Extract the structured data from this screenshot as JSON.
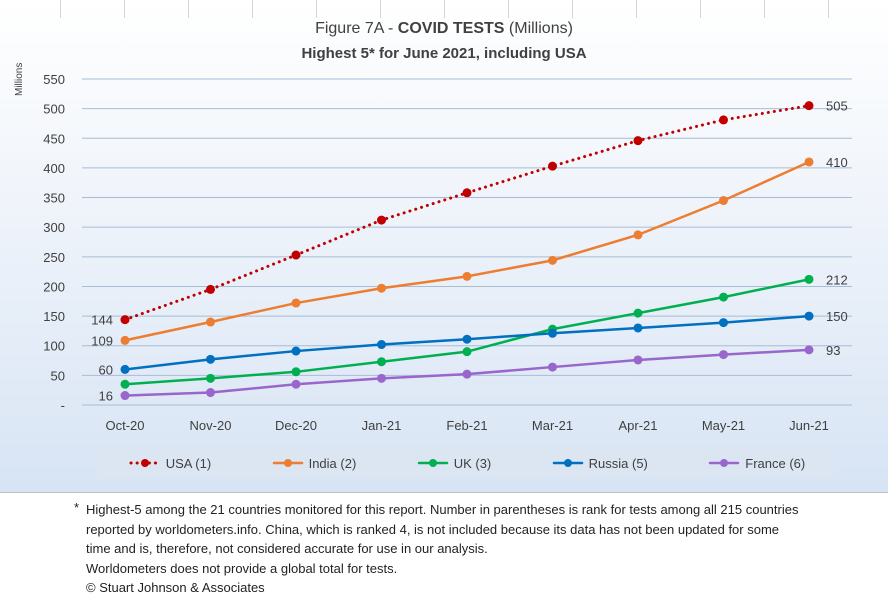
{
  "chart_data": {
    "type": "line",
    "title_normal": "Figure 7A - ",
    "title_bold": "COVID TESTS",
    "title_suffix": " (Millions)",
    "subtitle": "Highest 5* for June 2021, including USA",
    "ylabel": "Millions",
    "xlabel": "",
    "ylim": [
      0,
      550
    ],
    "yticks": [
      "550",
      "500",
      "450",
      "400",
      "350",
      "300",
      "250",
      "200",
      "150",
      "100",
      "50",
      "-"
    ],
    "ytick_values": [
      550,
      500,
      450,
      400,
      350,
      300,
      250,
      200,
      150,
      100,
      50,
      0
    ],
    "categories": [
      "Oct-20",
      "Nov-20",
      "Dec-20",
      "Jan-21",
      "Feb-21",
      "Mar-21",
      "Apr-21",
      "May-21",
      "Jun-21"
    ],
    "grid": true,
    "legend_position": "bottom",
    "series": [
      {
        "name": "USA (1)",
        "color": "#c00000",
        "style": "dotted",
        "values": [
          144,
          195,
          253,
          312,
          358,
          403,
          446,
          481,
          505
        ],
        "start_label": "144",
        "end_label": "505"
      },
      {
        "name": "India (2)",
        "color": "#ed7d31",
        "style": "solid",
        "values": [
          109,
          140,
          172,
          197,
          217,
          244,
          287,
          345,
          410
        ],
        "start_label": "109",
        "end_label": "410"
      },
      {
        "name": "UK (3)",
        "color": "#00b050",
        "style": "solid",
        "values": [
          35,
          45,
          56,
          73,
          90,
          128,
          155,
          182,
          212
        ],
        "start_label": "",
        "end_label": "212"
      },
      {
        "name": "Russia (5)",
        "color": "#0070c0",
        "style": "solid",
        "values": [
          60,
          77,
          91,
          102,
          111,
          121,
          130,
          139,
          150
        ],
        "start_label": "60",
        "end_label": "150"
      },
      {
        "name": "France (6)",
        "color": "#9966cc",
        "style": "solid",
        "values": [
          16,
          21,
          35,
          45,
          52,
          64,
          76,
          85,
          93
        ],
        "start_label": "16",
        "end_label": "93"
      }
    ]
  },
  "footnote": {
    "star": "*",
    "lines": [
      "Highest-5 among the 21 countries monitored for this report. Number in parentheses is rank for tests among all 215  countries",
      "reported by worldometers.info. China, which is ranked 4, is not included because its data has not been updated for some",
      "time and is, therefore, not considered accurate for use in our analysis.",
      "Worldometers does not provide a global total for tests.",
      "© Stuart Johnson & Associates"
    ]
  }
}
